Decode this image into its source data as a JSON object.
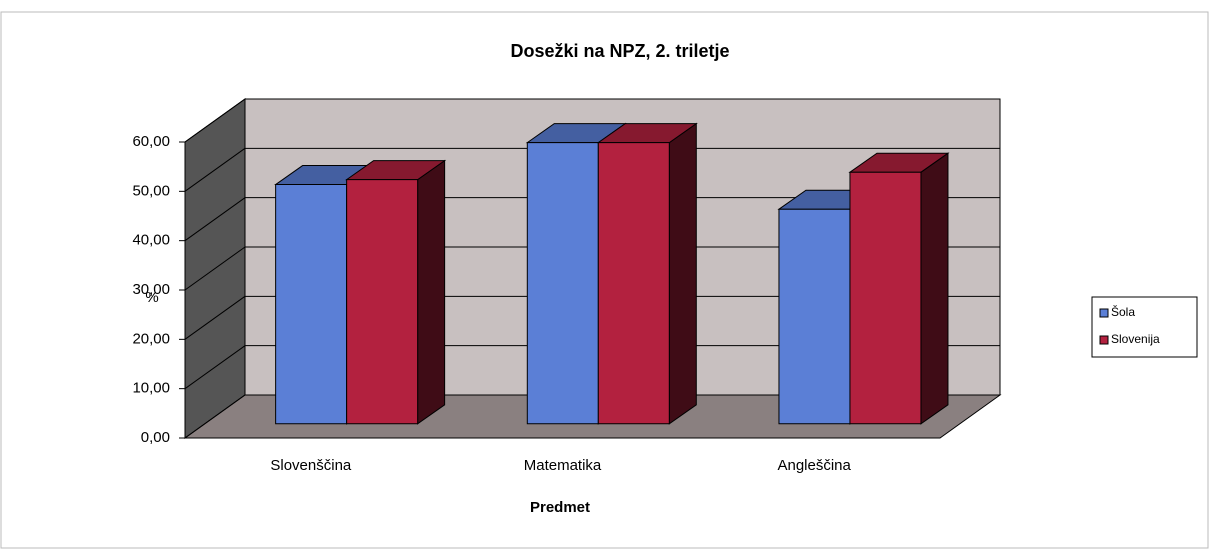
{
  "chart_data": {
    "type": "bar3d",
    "title": "Dosežki na NPZ, 2. triletje",
    "x_label": "Predmet",
    "y_label": "%",
    "categories": [
      "Slovenščina",
      "Matematika",
      "Angleščina"
    ],
    "series": [
      {
        "name": "Šola",
        "color": "#5b7fd6",
        "values": [
          48.5,
          57,
          43.5
        ]
      },
      {
        "name": "Slovenija",
        "color": "#b3213f",
        "values": [
          49.5,
          57,
          51
        ]
      }
    ],
    "ylim": [
      0,
      60
    ],
    "yticks": [
      {
        "value": 0,
        "label": "0,00"
      },
      {
        "value": 10,
        "label": "10,00"
      },
      {
        "value": 20,
        "label": "20,00"
      },
      {
        "value": 30,
        "label": "30,00"
      },
      {
        "value": 40,
        "label": "40,00"
      },
      {
        "value": 50,
        "label": "50,00"
      },
      {
        "value": 60,
        "label": "60,00"
      }
    ],
    "grid": true,
    "legend": "right"
  }
}
